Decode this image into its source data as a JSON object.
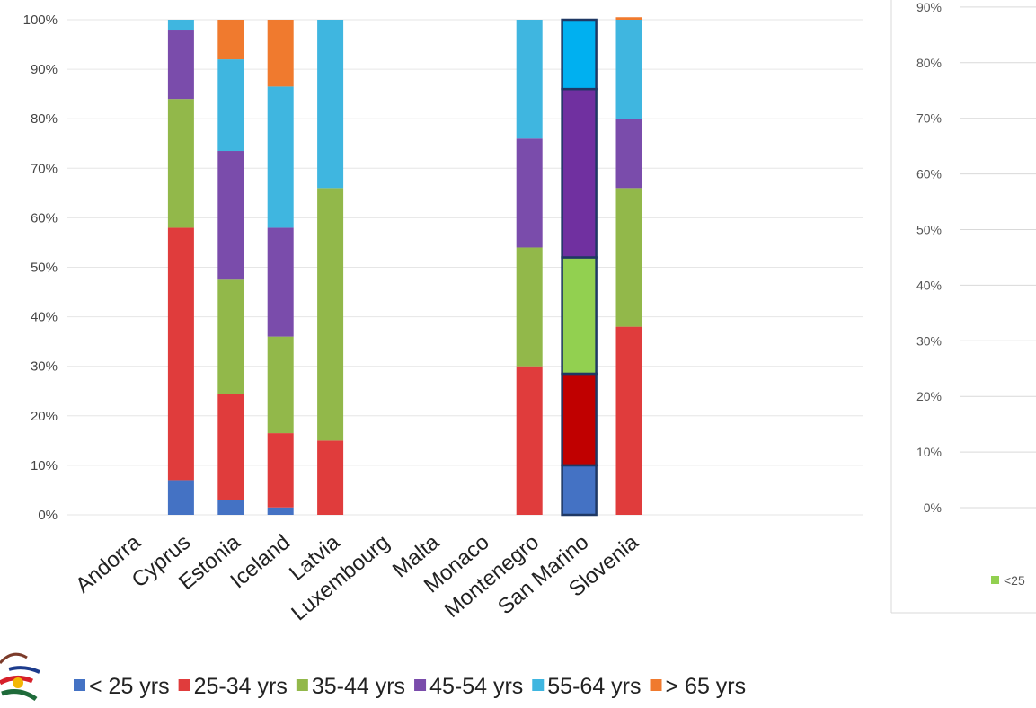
{
  "chart_data": [
    {
      "type": "bar",
      "stacked": true,
      "categories": [
        "Andorra",
        "Cyprus",
        "Estonia",
        "Iceland",
        "Latvia",
        "Luxembourg",
        "Malta",
        "Monaco",
        "Montenegro",
        "San Marino",
        "Slovenia"
      ],
      "yticks": [
        "0%",
        "10%",
        "20%",
        "30%",
        "40%",
        "50%",
        "60%",
        "70%",
        "80%",
        "90%",
        "100%"
      ],
      "ylim": [
        0,
        100
      ],
      "grid": true,
      "legend_position": "bottom",
      "series": [
        {
          "name": "< 25 yrs",
          "color": "#4472c4",
          "values": [
            0,
            7,
            3,
            1.5,
            0,
            0,
            0,
            0,
            0,
            10,
            0
          ]
        },
        {
          "name": "25-34 yrs",
          "color": "#e03c3c",
          "values": [
            0,
            51,
            21.5,
            15,
            15,
            0,
            0,
            0,
            30,
            18.5,
            38
          ]
        },
        {
          "name": "35-44 yrs",
          "color": "#92b84a",
          "values": [
            0,
            26,
            23,
            19.5,
            51,
            0,
            0,
            0,
            24,
            23.5,
            28
          ]
        },
        {
          "name": "45-54 yrs",
          "color": "#7a4cab",
          "values": [
            0,
            14,
            26,
            22,
            0,
            0,
            0,
            0,
            22,
            34,
            14
          ]
        },
        {
          "name": "55-64 yrs",
          "color": "#3fb6e0",
          "values": [
            0,
            2,
            18.5,
            28.5,
            34,
            0,
            0,
            0,
            24,
            14,
            20
          ]
        },
        {
          "name": "> 65 yrs",
          "color": "#f07a2e",
          "values": [
            0,
            0,
            8,
            13.5,
            0,
            0,
            0,
            0,
            0,
            0,
            0.5
          ]
        }
      ],
      "highlight_category": "San Marino",
      "highlight_colors": [
        "#4472c4",
        "#c00000",
        "#92d050",
        "#7030a0",
        "#00b0f0",
        "#f07a2e"
      ]
    },
    {
      "type": "bar",
      "yticks": [
        "0%",
        "10%",
        "20%",
        "30%",
        "40%",
        "50%",
        "60%",
        "70%",
        "80%",
        "90%"
      ],
      "legend_label": "<25",
      "legend_color": "#92d050"
    }
  ]
}
